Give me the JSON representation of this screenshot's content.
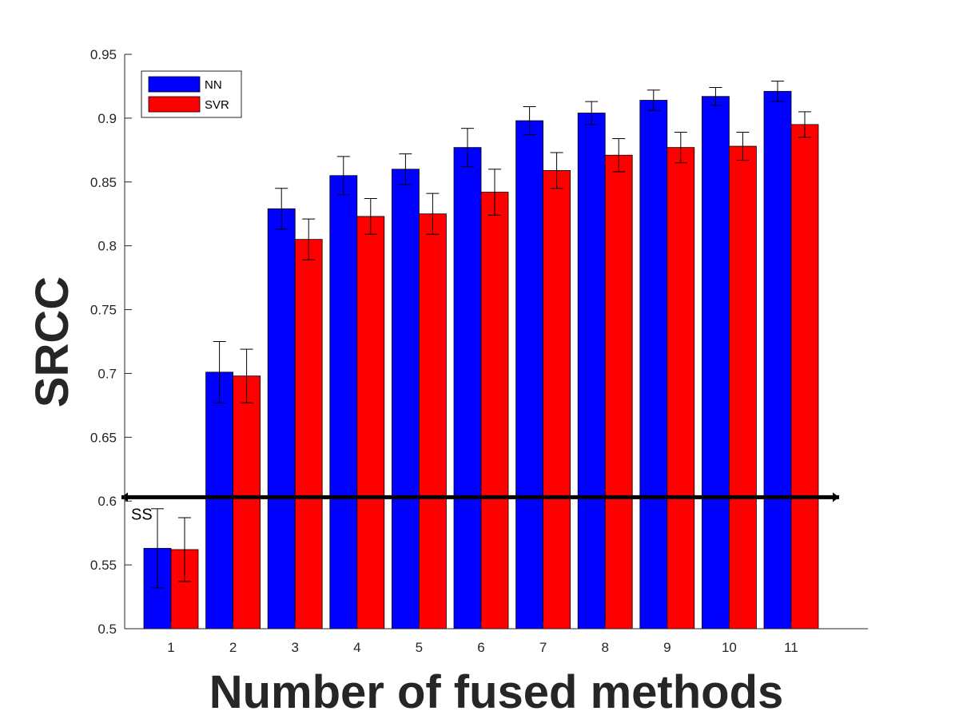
{
  "chart_data": {
    "type": "bar",
    "title": "",
    "xlabel": "Number of fused methods",
    "ylabel": "SRCC",
    "categories": [
      "1",
      "2",
      "3",
      "4",
      "5",
      "6",
      "7",
      "8",
      "9",
      "10",
      "11"
    ],
    "ylim": [
      0.5,
      0.95
    ],
    "yticks": [
      0.5,
      0.55,
      0.6,
      0.65,
      0.7,
      0.75,
      0.8,
      0.85,
      0.9,
      0.95
    ],
    "ytick_labels": [
      "0.5",
      "0.55",
      "0.6",
      "0.65",
      "0.7",
      "0.75",
      "0.8",
      "0.85",
      "0.9",
      "0.95"
    ],
    "grid": false,
    "legend_position": "top-left",
    "series": [
      {
        "name": "NN",
        "color": "#0000ff",
        "values": [
          0.563,
          0.701,
          0.829,
          0.855,
          0.86,
          0.877,
          0.898,
          0.904,
          0.914,
          0.917,
          0.921
        ],
        "errors": [
          0.031,
          0.024,
          0.016,
          0.015,
          0.012,
          0.015,
          0.011,
          0.009,
          0.008,
          0.007,
          0.008
        ]
      },
      {
        "name": "SVR",
        "color": "#ff0000",
        "values": [
          0.562,
          0.698,
          0.805,
          0.823,
          0.825,
          0.842,
          0.859,
          0.871,
          0.877,
          0.878,
          0.895
        ],
        "errors": [
          0.025,
          0.021,
          0.016,
          0.014,
          0.016,
          0.018,
          0.014,
          0.013,
          0.012,
          0.011,
          0.01
        ]
      }
    ],
    "reference_line": {
      "label": "SS",
      "value": 0.603,
      "color": "#000000"
    }
  }
}
